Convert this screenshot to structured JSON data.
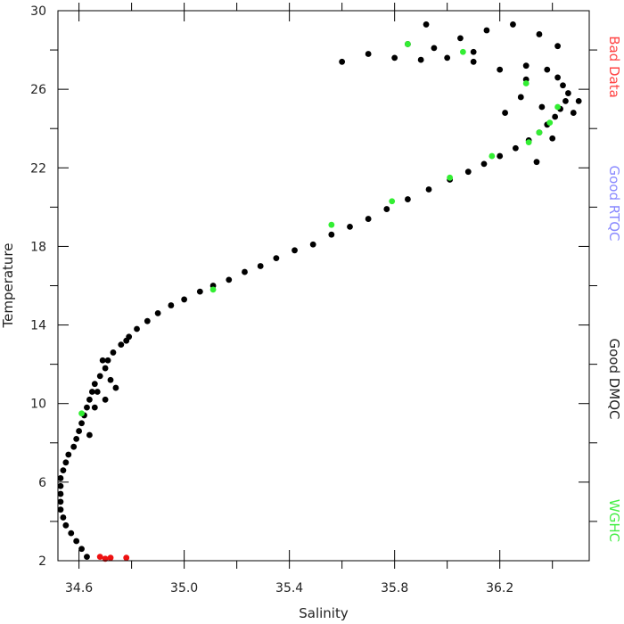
{
  "chart_data": {
    "type": "scatter",
    "xlabel": "Salinity",
    "ylabel": "Temperature",
    "xlim": [
      34.52,
      36.54
    ],
    "ylim": [
      2,
      30
    ],
    "x_ticks": [
      "34.6",
      "35.0",
      "35.4",
      "35.8",
      "36.2"
    ],
    "x_tick_values": [
      34.6,
      35.0,
      35.4,
      35.8,
      36.2
    ],
    "y_ticks": [
      "2",
      "6",
      "10",
      "14",
      "18",
      "22",
      "26",
      "30"
    ],
    "y_tick_values": [
      2,
      6,
      10,
      14,
      18,
      22,
      26,
      30
    ],
    "legend": {
      "placement": "right-side vertical text",
      "entries": [
        {
          "label": "Bad Data",
          "color": "#ff4444"
        },
        {
          "label": "Good RTQC",
          "color": "#8888ff"
        },
        {
          "label": "Good DMQC",
          "color": "#222222"
        },
        {
          "label": "WGHC",
          "color": "#44ee44"
        }
      ]
    },
    "series": [
      {
        "name": "Good DMQC",
        "color": "#000000",
        "points": [
          [
            34.63,
            2.2
          ],
          [
            34.61,
            2.6
          ],
          [
            34.59,
            3.0
          ],
          [
            34.57,
            3.4
          ],
          [
            34.55,
            3.8
          ],
          [
            34.54,
            4.2
          ],
          [
            34.53,
            4.6
          ],
          [
            34.53,
            5.0
          ],
          [
            34.53,
            5.4
          ],
          [
            34.53,
            5.8
          ],
          [
            34.53,
            6.2
          ],
          [
            34.54,
            6.6
          ],
          [
            34.55,
            7.0
          ],
          [
            34.56,
            7.4
          ],
          [
            34.58,
            7.8
          ],
          [
            34.59,
            8.2
          ],
          [
            34.6,
            8.6
          ],
          [
            34.61,
            9.0
          ],
          [
            34.62,
            9.4
          ],
          [
            34.63,
            9.8
          ],
          [
            34.64,
            10.2
          ],
          [
            34.65,
            10.6
          ],
          [
            34.66,
            11.0
          ],
          [
            34.68,
            11.4
          ],
          [
            34.7,
            11.8
          ],
          [
            34.71,
            12.2
          ],
          [
            34.73,
            12.6
          ],
          [
            34.76,
            13.0
          ],
          [
            34.79,
            13.4
          ],
          [
            34.82,
            13.8
          ],
          [
            34.86,
            14.2
          ],
          [
            34.9,
            14.6
          ],
          [
            34.95,
            15.0
          ],
          [
            35.0,
            15.3
          ],
          [
            35.06,
            15.7
          ],
          [
            35.11,
            16.0
          ],
          [
            35.17,
            16.3
          ],
          [
            35.23,
            16.7
          ],
          [
            35.29,
            17.0
          ],
          [
            35.35,
            17.4
          ],
          [
            35.42,
            17.8
          ],
          [
            35.49,
            18.1
          ],
          [
            35.56,
            18.6
          ],
          [
            35.63,
            19.0
          ],
          [
            35.7,
            19.4
          ],
          [
            35.77,
            19.9
          ],
          [
            35.85,
            20.4
          ],
          [
            35.93,
            20.9
          ],
          [
            36.01,
            21.4
          ],
          [
            36.08,
            21.8
          ],
          [
            36.14,
            22.2
          ],
          [
            36.2,
            22.6
          ],
          [
            36.26,
            23.0
          ],
          [
            36.31,
            23.4
          ],
          [
            36.35,
            23.8
          ],
          [
            36.38,
            24.2
          ],
          [
            36.41,
            24.6
          ],
          [
            36.43,
            25.0
          ],
          [
            36.45,
            25.4
          ],
          [
            36.46,
            25.8
          ],
          [
            36.44,
            26.2
          ],
          [
            36.42,
            26.6
          ],
          [
            36.38,
            27.0
          ],
          [
            36.3,
            27.2
          ],
          [
            36.2,
            27.0
          ],
          [
            36.1,
            27.4
          ],
          [
            36.0,
            27.6
          ],
          [
            35.9,
            27.5
          ],
          [
            35.8,
            27.6
          ],
          [
            35.7,
            27.8
          ],
          [
            35.6,
            27.4
          ],
          [
            35.95,
            28.1
          ],
          [
            36.05,
            28.6
          ],
          [
            36.15,
            29.0
          ],
          [
            36.25,
            29.3
          ],
          [
            36.35,
            28.8
          ],
          [
            36.42,
            28.2
          ],
          [
            35.92,
            29.3
          ],
          [
            35.85,
            28.3
          ],
          [
            36.1,
            27.9
          ],
          [
            36.3,
            26.5
          ],
          [
            36.36,
            25.1
          ],
          [
            36.4,
            23.5
          ],
          [
            36.34,
            22.3
          ],
          [
            36.22,
            24.8
          ],
          [
            36.28,
            25.6
          ],
          [
            36.48,
            24.8
          ],
          [
            36.5,
            25.4
          ],
          [
            34.67,
            10.6
          ],
          [
            34.7,
            10.2
          ],
          [
            34.74,
            10.8
          ],
          [
            34.72,
            11.2
          ],
          [
            34.66,
            9.8
          ],
          [
            34.69,
            12.2
          ],
          [
            34.78,
            13.2
          ],
          [
            34.64,
            8.4
          ]
        ]
      },
      {
        "name": "WGHC",
        "color": "#33ee33",
        "points": [
          [
            34.61,
            9.5
          ],
          [
            35.11,
            15.8
          ],
          [
            35.56,
            19.1
          ],
          [
            35.79,
            20.3
          ],
          [
            36.01,
            21.5
          ],
          [
            36.17,
            22.6
          ],
          [
            36.31,
            23.3
          ],
          [
            36.35,
            23.8
          ],
          [
            36.39,
            24.3
          ],
          [
            36.42,
            25.1
          ],
          [
            36.06,
            27.9
          ],
          [
            35.85,
            28.3
          ],
          [
            36.3,
            26.3
          ]
        ]
      },
      {
        "name": "Bad Data",
        "color": "#ee1111",
        "points": [
          [
            34.68,
            2.2
          ],
          [
            34.7,
            2.1
          ],
          [
            34.72,
            2.15
          ],
          [
            34.78,
            2.15
          ]
        ]
      }
    ]
  }
}
